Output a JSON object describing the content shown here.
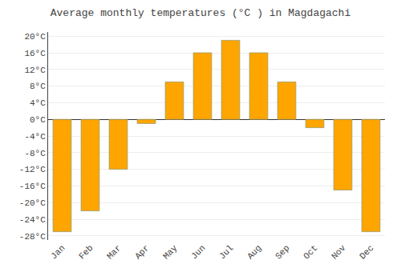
{
  "chart_data": {
    "type": "bar",
    "title": "Average monthly temperatures (°C ) in Magdagachi",
    "categories": [
      "Jan",
      "Feb",
      "Mar",
      "Apr",
      "May",
      "Jun",
      "Jul",
      "Aug",
      "Sep",
      "Oct",
      "Nov",
      "Dec"
    ],
    "values": [
      -27,
      -22,
      -12,
      -1,
      9,
      16,
      19,
      16,
      9,
      -2,
      -17,
      -27
    ],
    "color": "#FFA500",
    "ylim": [
      -29,
      21
    ],
    "yticks": [
      {
        "value": -28,
        "label": "-28°C"
      },
      {
        "value": -24,
        "label": "-24°C"
      },
      {
        "value": -20,
        "label": "-20°C"
      },
      {
        "value": -16,
        "label": "-16°C"
      },
      {
        "value": -12,
        "label": "-12°C"
      },
      {
        "value": -8,
        "label": "-8°C"
      },
      {
        "value": -4,
        "label": "-4°C"
      },
      {
        "value": 0,
        "label": "0°C"
      },
      {
        "value": 4,
        "label": "4°C"
      },
      {
        "value": 8,
        "label": "8°C"
      },
      {
        "value": 12,
        "label": "12°C"
      },
      {
        "value": 16,
        "label": "16°C"
      },
      {
        "value": 20,
        "label": "20°C"
      }
    ],
    "grid": true
  }
}
